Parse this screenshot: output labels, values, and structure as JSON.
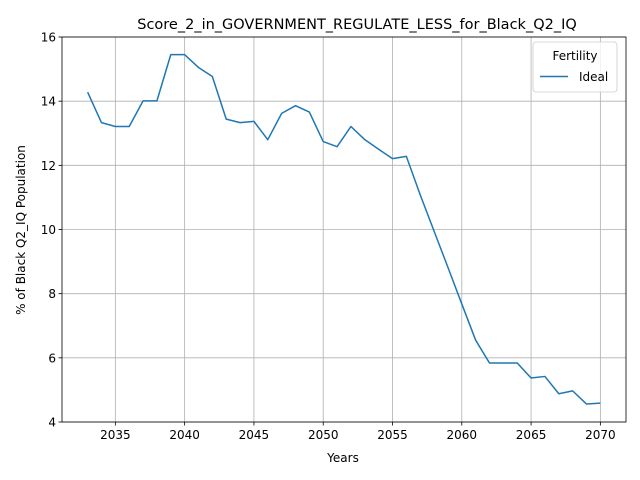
{
  "chart_data": {
    "type": "line",
    "title": "Score_2_in_GOVERNMENT_REGULATE_LESS_for_Black_Q2_IQ",
    "xlabel": "Years",
    "ylabel": "% of Black Q2_IQ Population",
    "xlim": [
      2031.15,
      2071.85
    ],
    "ylim": [
      4,
      16
    ],
    "xticks": [
      2035,
      2040,
      2045,
      2050,
      2055,
      2060,
      2065,
      2070
    ],
    "yticks": [
      4,
      6,
      8,
      10,
      12,
      14,
      16
    ],
    "grid": true,
    "legend": {
      "title": "Fertility",
      "placement": "top-right"
    },
    "series": [
      {
        "name": "Ideal",
        "color": "#1f77b4",
        "x": [
          2033,
          2034,
          2035,
          2036,
          2037,
          2038,
          2039,
          2040,
          2041,
          2042,
          2043,
          2044,
          2045,
          2046,
          2047,
          2048,
          2049,
          2050,
          2051,
          2052,
          2053,
          2054,
          2055,
          2056,
          2057,
          2058,
          2059,
          2060,
          2061,
          2062,
          2063,
          2064,
          2065,
          2066,
          2067,
          2068,
          2069,
          2070
        ],
        "y": [
          14.28,
          13.33,
          13.21,
          13.21,
          14.01,
          14.01,
          15.45,
          15.45,
          15.05,
          14.77,
          13.44,
          13.33,
          13.37,
          12.8,
          13.62,
          13.86,
          13.66,
          12.74,
          12.58,
          13.21,
          12.8,
          12.5,
          12.21,
          12.28,
          11.08,
          9.95,
          8.82,
          7.68,
          6.55,
          5.84,
          5.84,
          5.84,
          5.37,
          5.42,
          4.88,
          4.97,
          4.56,
          4.59
        ]
      }
    ]
  }
}
